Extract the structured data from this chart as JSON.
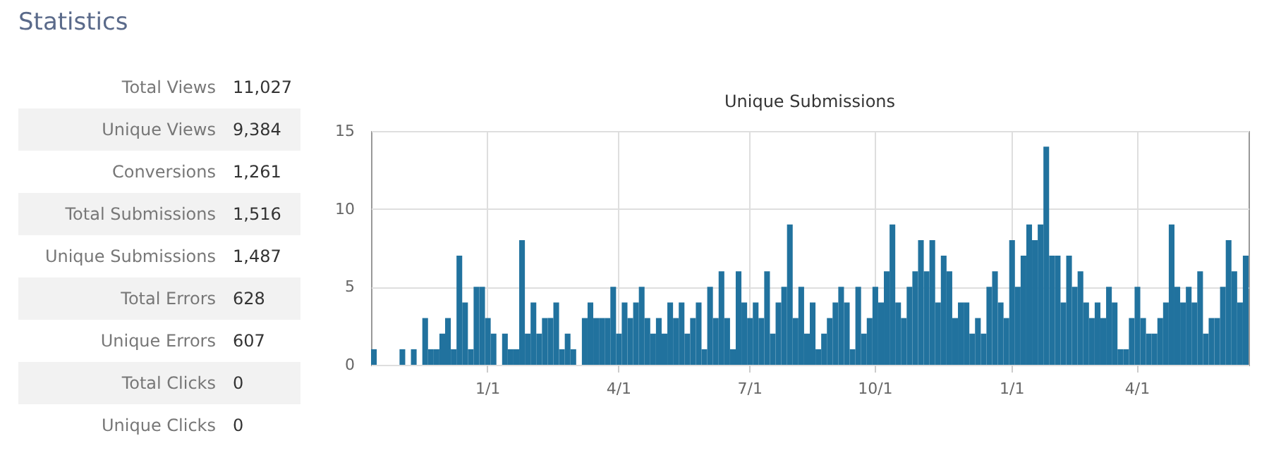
{
  "chart_data": [
    {
      "type": "other",
      "title": "Statistics",
      "categories": [
        "Total Views",
        "Unique Views",
        "Conversions",
        "Total Submissions",
        "Unique Submissions",
        "Total Errors",
        "Unique Errors",
        "Total Clicks",
        "Unique Clicks"
      ],
      "value_labels": [
        "11,027",
        "9,384",
        "1,261",
        "1,516",
        "1,487",
        "628",
        "607",
        "0",
        "0"
      ]
    },
    {
      "type": "bar",
      "title": "Unique Submissions",
      "categories": [
        null,
        null,
        null,
        null,
        null,
        null,
        null,
        null,
        null,
        null,
        null,
        null,
        null,
        null,
        null,
        null,
        null,
        null,
        null,
        null,
        "1/1",
        null,
        null,
        null,
        null,
        null,
        null,
        null,
        null,
        null,
        null,
        null,
        null,
        null,
        null,
        null,
        null,
        null,
        null,
        null,
        null,
        null,
        null,
        "4/1",
        null,
        null,
        null,
        null,
        null,
        null,
        null,
        null,
        null,
        null,
        null,
        null,
        null,
        null,
        null,
        null,
        null,
        null,
        null,
        null,
        null,
        null,
        "7/1",
        null,
        null,
        null,
        null,
        null,
        null,
        null,
        null,
        null,
        null,
        null,
        null,
        null,
        null,
        null,
        null,
        null,
        null,
        null,
        null,
        null,
        "10/1",
        null,
        null,
        null,
        null,
        null,
        null,
        null,
        null,
        null,
        null,
        null,
        null,
        null,
        null,
        null,
        null,
        null,
        null,
        null,
        null,
        null,
        null,
        null,
        "1/1",
        null,
        null,
        null,
        null,
        null,
        null,
        null,
        null,
        null,
        null,
        null,
        null,
        null,
        null,
        null,
        null,
        null,
        null,
        null,
        null,
        null,
        "4/1",
        null,
        null,
        null,
        null,
        null,
        null,
        null,
        null,
        null,
        null,
        null,
        null,
        null,
        null,
        null,
        null,
        null,
        null,
        null
      ],
      "values": [
        1,
        0,
        0,
        0,
        0,
        1,
        0,
        1,
        0,
        3,
        1,
        1,
        2,
        3,
        1,
        7,
        4,
        1,
        5,
        5,
        3,
        2,
        0,
        2,
        1,
        1,
        8,
        2,
        4,
        2,
        3,
        3,
        4,
        1,
        2,
        1,
        0,
        3,
        4,
        3,
        3,
        3,
        5,
        2,
        4,
        3,
        4,
        5,
        3,
        2,
        3,
        2,
        4,
        3,
        4,
        2,
        3,
        4,
        1,
        5,
        3,
        6,
        3,
        1,
        6,
        4,
        3,
        4,
        3,
        6,
        2,
        4,
        5,
        9,
        3,
        5,
        2,
        4,
        1,
        2,
        3,
        4,
        5,
        4,
        1,
        5,
        2,
        3,
        5,
        4,
        6,
        9,
        4,
        3,
        5,
        6,
        8,
        6,
        8,
        4,
        7,
        6,
        3,
        4,
        4,
        2,
        3,
        2,
        5,
        6,
        4,
        3,
        8,
        5,
        7,
        9,
        8,
        9,
        14,
        7,
        7,
        4,
        7,
        5,
        6,
        4,
        3,
        4,
        3,
        5,
        4,
        1,
        1,
        3,
        5,
        3,
        2,
        2,
        3,
        4,
        9,
        5,
        4,
        5,
        4,
        6,
        2,
        3,
        3,
        5,
        8,
        6,
        4,
        7
      ],
      "color": "#21729e",
      "ylim": [
        0,
        15
      ],
      "yticks": [
        0,
        5,
        10,
        15
      ],
      "grid": true
    }
  ]
}
